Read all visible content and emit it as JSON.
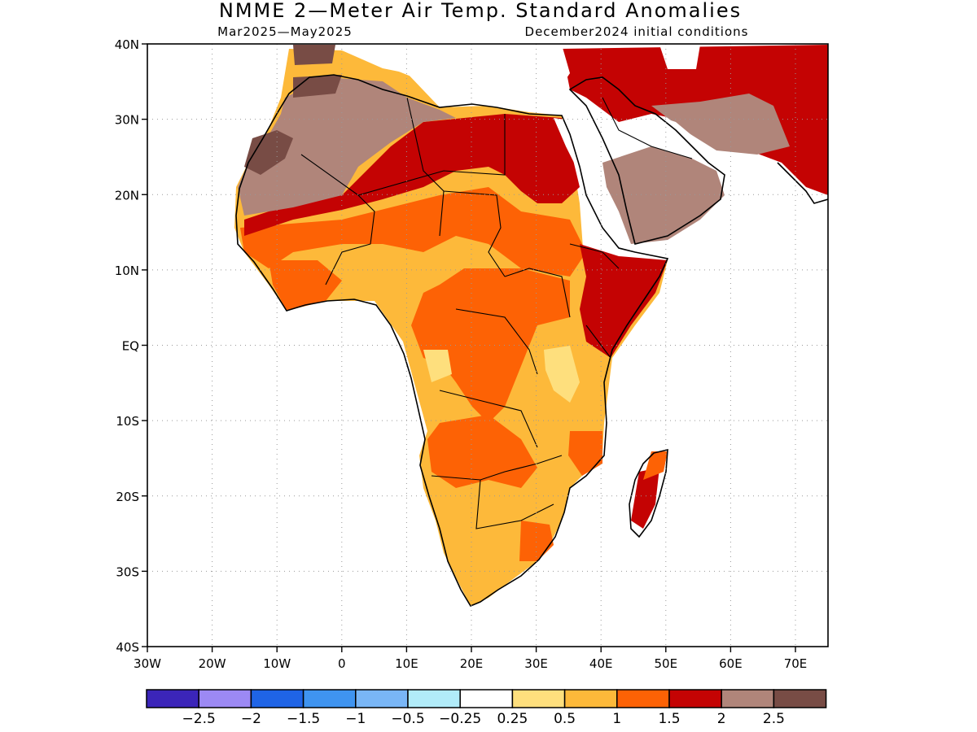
{
  "title": "NMME 2—Meter Air Temp. Standard Anomalies",
  "subtitle_left": "Mar2025—May2025",
  "subtitle_right": "December2024 initial conditions",
  "lat_labels": [
    "40N",
    "30N",
    "20N",
    "10N",
    "EQ",
    "10S",
    "20S",
    "30S",
    "40S"
  ],
  "lon_labels": [
    "30W",
    "20W",
    "10W",
    "0",
    "10E",
    "20E",
    "30E",
    "40E",
    "50E",
    "60E",
    "70E"
  ],
  "colorbar": {
    "colors": [
      "#3b25b9",
      "#9c89f4",
      "#1f64e6",
      "#3f94f0",
      "#79b6f6",
      "#b1ecf9",
      "#ffffff",
      "#fedf7d",
      "#fdb93a",
      "#fd6205",
      "#c40303",
      "#b0857a",
      "#784c45"
    ],
    "labels": [
      "−2.5",
      "−2",
      "−1.5",
      "−1",
      "−0.5",
      "−0.25",
      "0.25",
      "0.5",
      "1",
      "1.5",
      "2",
      "2.5"
    ]
  },
  "map_colors": {
    "land_outline": "#000000",
    "ocean": "#ffffff"
  }
}
